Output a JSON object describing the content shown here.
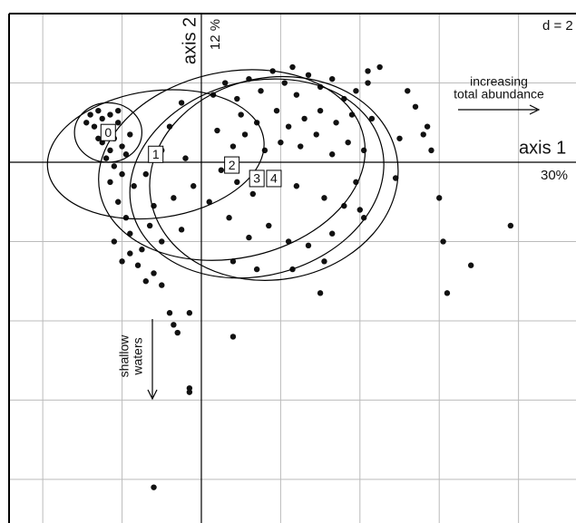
{
  "chart_data": {
    "type": "scatter",
    "scale_label": "d = 2",
    "x_axis_label": "axis 1",
    "x_axis_inertia": "30%",
    "y_axis_label": "axis 2",
    "y_axis_inertia": "12 %",
    "annotations": [
      "increasing",
      "total abundance",
      "shallow",
      "waters"
    ],
    "xlim": [
      -4.85,
      9.45
    ],
    "ylim": [
      -9.1,
      3.75
    ],
    "xticks": [
      -4,
      -2,
      0,
      2,
      4,
      6,
      8
    ],
    "yticks": [
      2,
      0,
      -2,
      -4,
      -6,
      -8
    ],
    "grid": true,
    "color": "#111111",
    "x": [
      -2.8,
      -2.6,
      -2.5,
      -2.7,
      -2.4,
      -2.3,
      -2.2,
      -2.1,
      -2.5,
      -2.3,
      -2.0,
      -2.4,
      -2.2,
      -2.0,
      -2.3,
      -2.6,
      -2.9,
      -2.1,
      -1.8,
      -1.9,
      -2.1,
      -1.9,
      -2.2,
      -1.8,
      -1.5,
      -1.6,
      -1.2,
      -1.0,
      -1.4,
      -1.8,
      -1.3,
      -1.0,
      -2.0,
      -1.7,
      -1.4,
      -1.2,
      -0.8,
      -0.7,
      -0.3,
      -0.6,
      -0.3,
      -0.3,
      -1.2,
      0.8,
      0.3,
      0.6,
      0.9,
      1.2,
      1.5,
      1.8,
      2.1,
      2.4,
      2.7,
      3.0,
      3.3,
      3.6,
      3.9,
      4.2,
      2.3,
      1.0,
      1.4,
      1.9,
      2.2,
      2.6,
      3.0,
      3.4,
      3.8,
      4.3,
      0.4,
      0.8,
      1.1,
      1.6,
      2.0,
      2.5,
      2.9,
      3.3,
      3.7,
      4.1,
      0.5,
      0.9,
      1.3,
      1.8,
      2.4,
      3.1,
      3.6,
      4.0,
      0.2,
      0.7,
      1.2,
      1.7,
      2.2,
      2.7,
      3.3,
      4.1,
      0.8,
      1.4,
      2.3,
      3.1,
      3.0,
      -0.5,
      -0.8,
      -1.0,
      -0.4,
      -0.2,
      -0.7,
      -0.5,
      5.2,
      5.4,
      5.6,
      5.7,
      5.8,
      4.5,
      5.0,
      4.9,
      6.0,
      7.8,
      6.1,
      6.8,
      6.2,
      4.2,
      3.9
    ],
    "y": [
      1.2,
      1.3,
      1.1,
      0.9,
      0.8,
      1.2,
      0.6,
      1.0,
      0.5,
      0.3,
      0.4,
      0.1,
      -0.1,
      -0.3,
      -0.5,
      0.6,
      1.0,
      1.3,
      0.7,
      0.2,
      -1.0,
      -1.4,
      -2.0,
      -2.3,
      -2.2,
      -2.6,
      -2.8,
      -3.1,
      -3.0,
      -1.8,
      -1.6,
      -2.0,
      -2.5,
      -0.6,
      -0.3,
      -1.1,
      -3.8,
      -4.1,
      -3.8,
      -4.3,
      -5.7,
      -5.8,
      -8.2,
      -4.4,
      1.7,
      2.0,
      1.6,
      2.1,
      1.8,
      2.3,
      2.0,
      1.7,
      2.2,
      1.9,
      2.1,
      1.6,
      1.8,
      2.0,
      2.4,
      1.2,
      1.0,
      1.3,
      0.9,
      1.1,
      1.3,
      1.0,
      1.2,
      1.1,
      0.8,
      0.4,
      0.7,
      0.3,
      0.5,
      0.4,
      0.7,
      0.2,
      0.5,
      0.3,
      -0.2,
      -0.5,
      -0.8,
      -0.4,
      -0.6,
      -0.9,
      -1.1,
      -1.2,
      -1.0,
      -1.4,
      -1.9,
      -1.6,
      -2.0,
      -2.1,
      -1.8,
      -1.4,
      -2.5,
      -2.7,
      -2.7,
      -2.5,
      -3.3,
      1.5,
      0.9,
      0.3,
      0.1,
      -0.6,
      -0.9,
      -1.7,
      1.8,
      1.4,
      0.7,
      0.9,
      0.3,
      2.4,
      0.6,
      -0.4,
      -0.9,
      -1.6,
      -2.0,
      -2.6,
      -3.3,
      2.3,
      -0.5
    ],
    "classes": [
      {
        "name": "0",
        "cx": -2.35,
        "cy": 0.75,
        "rx": 0.85,
        "ry": 0.75,
        "angle": 0
      },
      {
        "name": "1",
        "cx": -1.15,
        "cy": 0.2,
        "rx": 2.75,
        "ry": 1.6,
        "angle": -8
      },
      {
        "name": "2",
        "cx": 0.77,
        "cy": -0.07,
        "rx": 3.4,
        "ry": 2.35,
        "angle": -12
      },
      {
        "name": "3",
        "cx": 1.4,
        "cy": -0.41,
        "rx": 3.25,
        "ry": 2.45,
        "angle": -15
      },
      {
        "name": "4",
        "cx": 1.83,
        "cy": -0.41,
        "rx": 3.15,
        "ry": 2.55,
        "angle": -10
      }
    ]
  }
}
